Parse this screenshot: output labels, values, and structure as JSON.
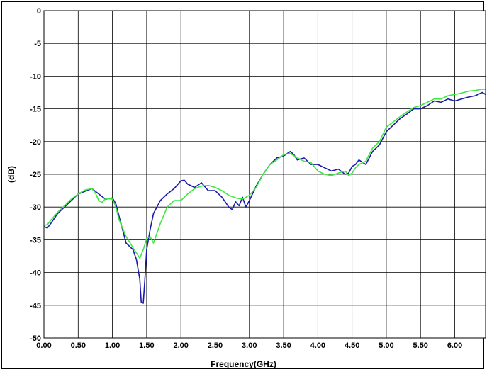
{
  "chart_data": {
    "type": "line",
    "title": "",
    "xlabel": "Frequency(GHz)",
    "ylabel": "(dB)",
    "xlim": [
      0,
      6.45
    ],
    "ylim": [
      -50,
      0
    ],
    "grid": true,
    "x_ticks": [
      0,
      0.5,
      1.0,
      1.5,
      2.0,
      2.5,
      3.0,
      3.5,
      4.0,
      4.5,
      5.0,
      5.5,
      6.0
    ],
    "x_tick_labels": [
      "0.00",
      "0.50",
      "1.00",
      "1.50",
      "2.00",
      "2.50",
      "3.00",
      "3.50",
      "4.00",
      "4.50",
      "5.00",
      "5.50",
      "6.00"
    ],
    "y_ticks": [
      0,
      -5,
      -10,
      -15,
      -20,
      -25,
      -30,
      -35,
      -40,
      -45,
      -50
    ],
    "y_tick_labels": [
      "0",
      "-5",
      "-10",
      "-15",
      "-20",
      "-25",
      "-30",
      "-35",
      "-40",
      "-45",
      "-50"
    ],
    "series": [
      {
        "color": "#1a1aa8",
        "x": [
          0.0,
          0.05,
          0.1,
          0.2,
          0.3,
          0.4,
          0.5,
          0.6,
          0.7,
          0.8,
          0.9,
          1.0,
          1.05,
          1.1,
          1.2,
          1.3,
          1.35,
          1.4,
          1.42,
          1.45,
          1.48,
          1.5,
          1.55,
          1.6,
          1.7,
          1.8,
          1.9,
          2.0,
          2.05,
          2.1,
          2.2,
          2.3,
          2.4,
          2.5,
          2.6,
          2.7,
          2.75,
          2.8,
          2.85,
          2.9,
          2.95,
          3.0,
          3.1,
          3.2,
          3.3,
          3.4,
          3.5,
          3.6,
          3.65,
          3.7,
          3.8,
          3.9,
          4.0,
          4.1,
          4.2,
          4.3,
          4.4,
          4.45,
          4.5,
          4.55,
          4.6,
          4.7,
          4.8,
          4.9,
          5.0,
          5.1,
          5.2,
          5.3,
          5.4,
          5.5,
          5.6,
          5.7,
          5.8,
          5.9,
          6.0,
          6.1,
          6.2,
          6.3,
          6.4,
          6.45
        ],
        "y": [
          -33.0,
          -33.2,
          -32.5,
          -31.0,
          -30.0,
          -29.0,
          -28.0,
          -27.6,
          -27.2,
          -28.0,
          -28.8,
          -28.6,
          -29.5,
          -31.5,
          -35.5,
          -36.5,
          -38.0,
          -41.0,
          -44.5,
          -44.7,
          -40.0,
          -36.5,
          -33.5,
          -31.0,
          -29.0,
          -28.0,
          -27.2,
          -26.0,
          -25.9,
          -26.5,
          -27.0,
          -26.3,
          -27.5,
          -27.5,
          -28.5,
          -30.0,
          -30.4,
          -29.2,
          -29.8,
          -28.5,
          -30.0,
          -29.0,
          -26.8,
          -25.0,
          -23.5,
          -22.5,
          -22.2,
          -21.5,
          -22.0,
          -22.8,
          -22.5,
          -23.5,
          -23.5,
          -24.0,
          -24.5,
          -24.2,
          -25.0,
          -24.8,
          -23.8,
          -23.5,
          -22.8,
          -23.5,
          -21.5,
          -20.5,
          -18.5,
          -17.5,
          -16.5,
          -15.8,
          -15.0,
          -15.0,
          -14.5,
          -13.8,
          -14.0,
          -13.5,
          -13.8,
          -13.5,
          -13.2,
          -13.0,
          -12.5,
          -12.8
        ]
      },
      {
        "color": "#3ee83e",
        "x": [
          0.0,
          0.05,
          0.1,
          0.2,
          0.3,
          0.4,
          0.5,
          0.6,
          0.7,
          0.75,
          0.8,
          0.85,
          0.9,
          1.0,
          1.05,
          1.1,
          1.2,
          1.3,
          1.35,
          1.4,
          1.45,
          1.5,
          1.55,
          1.6,
          1.7,
          1.8,
          1.9,
          2.0,
          2.05,
          2.1,
          2.2,
          2.3,
          2.4,
          2.5,
          2.6,
          2.7,
          2.8,
          2.9,
          3.0,
          3.1,
          3.2,
          3.3,
          3.4,
          3.5,
          3.6,
          3.7,
          3.8,
          3.9,
          4.0,
          4.1,
          4.2,
          4.3,
          4.4,
          4.45,
          4.5,
          4.55,
          4.6,
          4.7,
          4.8,
          4.9,
          5.0,
          5.1,
          5.2,
          5.3,
          5.4,
          5.5,
          5.6,
          5.7,
          5.8,
          5.9,
          6.0,
          6.1,
          6.2,
          6.3,
          6.4,
          6.45
        ],
        "y": [
          -32.8,
          -32.7,
          -32.0,
          -30.8,
          -29.8,
          -28.8,
          -28.0,
          -27.4,
          -27.2,
          -27.8,
          -29.0,
          -29.3,
          -28.7,
          -28.8,
          -30.0,
          -32.0,
          -34.5,
          -36.2,
          -37.0,
          -37.8,
          -36.5,
          -34.8,
          -34.5,
          -35.5,
          -32.5,
          -30.0,
          -29.0,
          -29.0,
          -28.5,
          -28.0,
          -27.2,
          -26.8,
          -26.7,
          -27.0,
          -27.5,
          -28.2,
          -28.6,
          -28.8,
          -28.2,
          -27.0,
          -25.0,
          -23.5,
          -22.8,
          -22.0,
          -21.8,
          -22.5,
          -23.0,
          -23.2,
          -24.5,
          -25.0,
          -25.2,
          -24.8,
          -24.5,
          -25.2,
          -24.8,
          -24.0,
          -23.5,
          -23.0,
          -21.0,
          -20.0,
          -17.8,
          -17.0,
          -16.2,
          -15.5,
          -14.8,
          -14.5,
          -14.0,
          -13.5,
          -13.5,
          -13.0,
          -12.8,
          -12.6,
          -12.3,
          -12.2,
          -12.0,
          -12.0
        ]
      }
    ]
  }
}
